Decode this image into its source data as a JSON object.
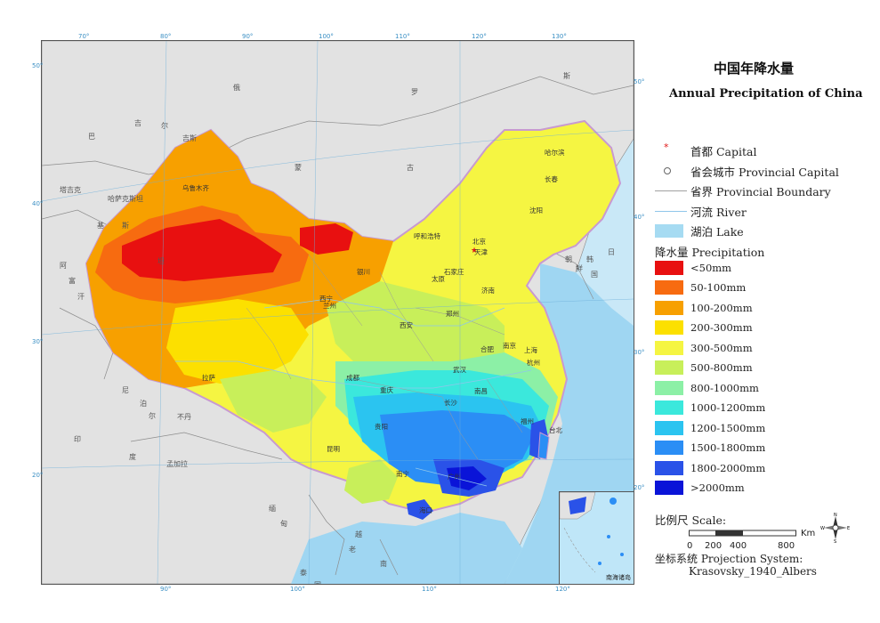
{
  "title": {
    "zh": "中国年降水量",
    "en": "Annual Precipitation of China"
  },
  "legend": {
    "symbols": [
      {
        "label": "首都 Capital",
        "icon": "star-icon",
        "color": "#e01818"
      },
      {
        "label": "省会城市 Provincial Capital",
        "icon": "ring-dot-icon",
        "color": "#555555"
      },
      {
        "label": "省界 Provincial Boundary",
        "icon": "line-icon",
        "color": "#a0a0a0"
      },
      {
        "label": "河流 River",
        "icon": "river-icon",
        "color": "#8fc6ea"
      },
      {
        "label": "湖泊 Lake",
        "icon": "lake-icon",
        "color": "#a6dbf2"
      }
    ],
    "precip_heading": "降水量 Precipitation",
    "classes": [
      {
        "label": "<50mm",
        "color": "#e81010"
      },
      {
        "label": "50-100mm",
        "color": "#f76b10"
      },
      {
        "label": "100-200mm",
        "color": "#f7a000"
      },
      {
        "label": "200-300mm",
        "color": "#fce000"
      },
      {
        "label": "300-500mm",
        "color": "#f5f542"
      },
      {
        "label": "500-800mm",
        "color": "#c8ef5a"
      },
      {
        "label": "800-1000mm",
        "color": "#8cf0a6"
      },
      {
        "label": "1000-1200mm",
        "color": "#3be8dc"
      },
      {
        "label": "1200-1500mm",
        "color": "#2bc4f0"
      },
      {
        "label": "1500-1800mm",
        "color": "#2b8ef5"
      },
      {
        "label": "1800-2000mm",
        "color": "#2a52e8"
      },
      {
        "label": ">2000mm",
        "color": "#0a14d8"
      }
    ],
    "scale": {
      "title": "比例尺 Scale:",
      "ticks": [
        "0",
        "200",
        "400",
        "800"
      ],
      "unit": "Km"
    },
    "projection": {
      "label": "坐标系统 Projection System:",
      "value": "Krasovsky_1940_Albers"
    },
    "compass": {
      "n": "N",
      "s": "S",
      "e": "E",
      "w": "W"
    }
  },
  "map": {
    "graticule_top": [
      "70°",
      "80°",
      "90°",
      "100°",
      "110°",
      "120°",
      "130°"
    ],
    "graticule_bottom": [
      "90°",
      "100°",
      "110°",
      "120°"
    ],
    "graticule_left": [
      "50°",
      "40°",
      "30°",
      "20°"
    ],
    "graticule_right": [
      "50°",
      "40°",
      "30°",
      "20°"
    ],
    "cities": [
      "北京",
      "天津",
      "哈尔滨",
      "长春",
      "沈阳",
      "呼和浩特",
      "石家庄",
      "太原",
      "济南",
      "乌鲁木齐",
      "银川",
      "西宁",
      "兰州",
      "西安",
      "郑州",
      "南京",
      "合肥",
      "上海",
      "杭州",
      "武汉",
      "拉萨",
      "成都",
      "重庆",
      "长沙",
      "南昌",
      "福州",
      "台北",
      "贵阳",
      "昆明",
      "南宁",
      "广州",
      "海口"
    ],
    "countries": [
      "俄",
      "罗",
      "斯",
      "蒙",
      "古",
      "哈萨克斯坦",
      "吉",
      "尔",
      "吉斯",
      "塔吉克",
      "阿",
      "富",
      "汗",
      "巴",
      "基",
      "斯",
      "坦",
      "印",
      "度",
      "尼",
      "泊",
      "尔",
      "不丹",
      "孟加拉",
      "缅",
      "甸",
      "老",
      "越",
      "南",
      "泰",
      "国",
      "朝",
      "鲜",
      "韩",
      "国",
      "日"
    ],
    "inset_label": "南海诸岛"
  }
}
